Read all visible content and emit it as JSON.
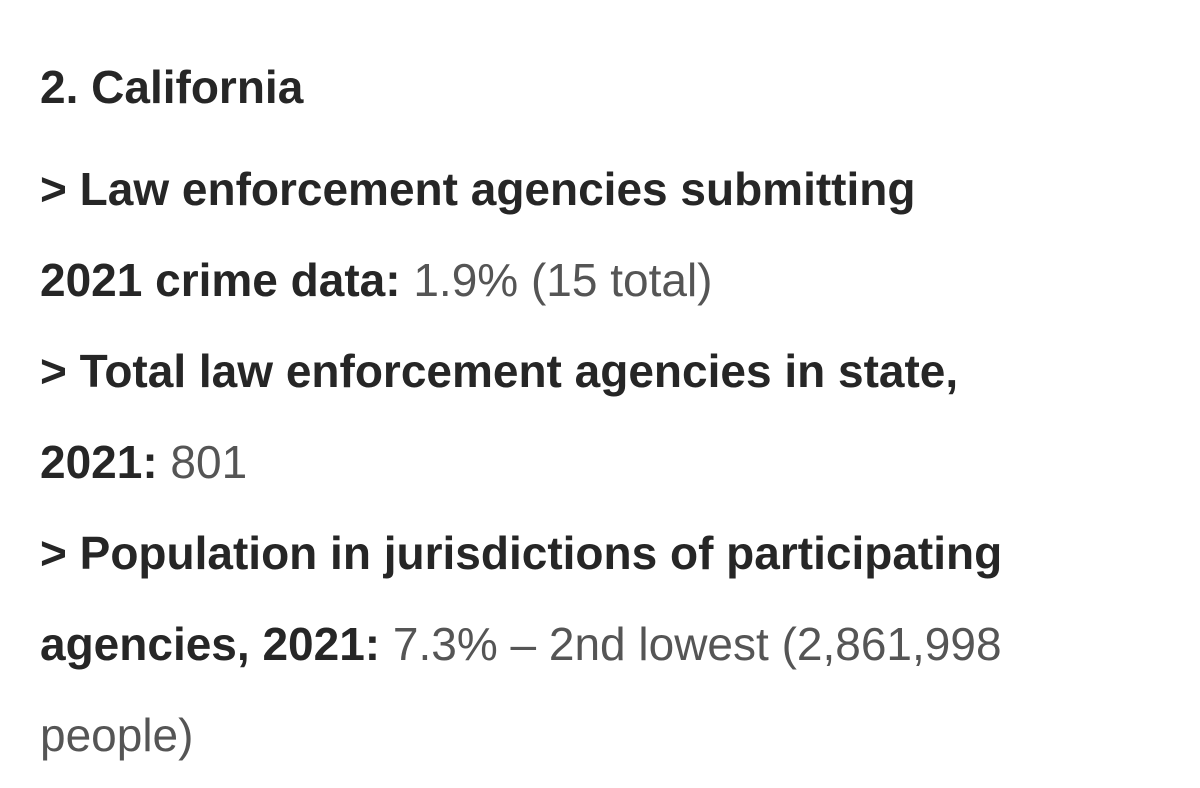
{
  "heading": "2. California",
  "items": [
    {
      "label_part1": "> Law enforcement agencies submitting",
      "label_part2": "2021 crime data:",
      "value": " 1.9% (15 total)"
    },
    {
      "label_part1": "> Total law enforcement agencies in state,",
      "label_part2": "2021:",
      "value": " 801"
    },
    {
      "label_part1": "> Population in jurisdictions of participating",
      "label_part2": "agencies, 2021:",
      "value": " 7.3% – 2nd lowest (2,861,998",
      "value_cont": "people)"
    }
  ]
}
